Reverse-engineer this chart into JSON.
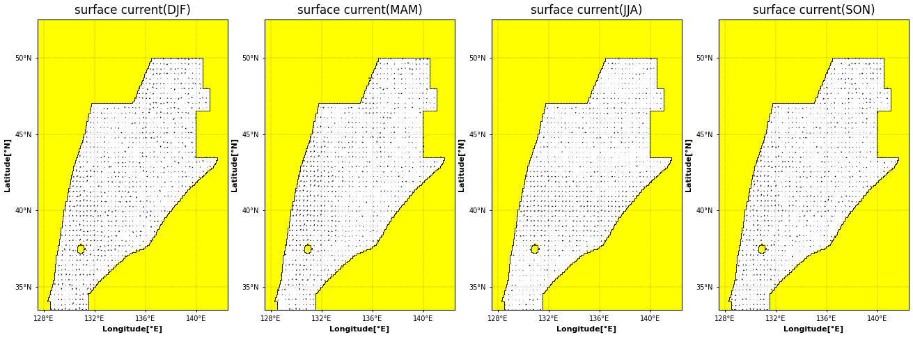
{
  "titles": [
    "surface current(DJF)",
    "surface current(MAM)",
    "surface current(JJA)",
    "surface current(SON)"
  ],
  "lon_min": 127.5,
  "lon_max": 142.5,
  "lat_min": 33.5,
  "lat_max": 52.5,
  "lon_ticks": [
    128,
    132,
    136,
    140
  ],
  "lat_ticks": [
    35,
    40,
    45,
    50
  ],
  "lon_tick_labels": [
    "128°E",
    "132°E",
    "136°E",
    "140°E"
  ],
  "lat_tick_labels": [
    "35°N",
    "40°N",
    "45°N",
    "50°N"
  ],
  "xlabel": "Longitude[°E]",
  "ylabel": "Latitude[°N]",
  "ocean_color": "#ffffff",
  "land_color": "#ffff00",
  "background_color": "#ffffff",
  "title_fontsize": 12,
  "label_fontsize": 8,
  "tick_fontsize": 7,
  "figsize": [
    13.11,
    4.84
  ],
  "dpi": 100,
  "n_panels": 4,
  "coast_linewidth": 0.7,
  "grid_linewidth": 0.3,
  "arrow_color": "black",
  "coast_color": "black"
}
